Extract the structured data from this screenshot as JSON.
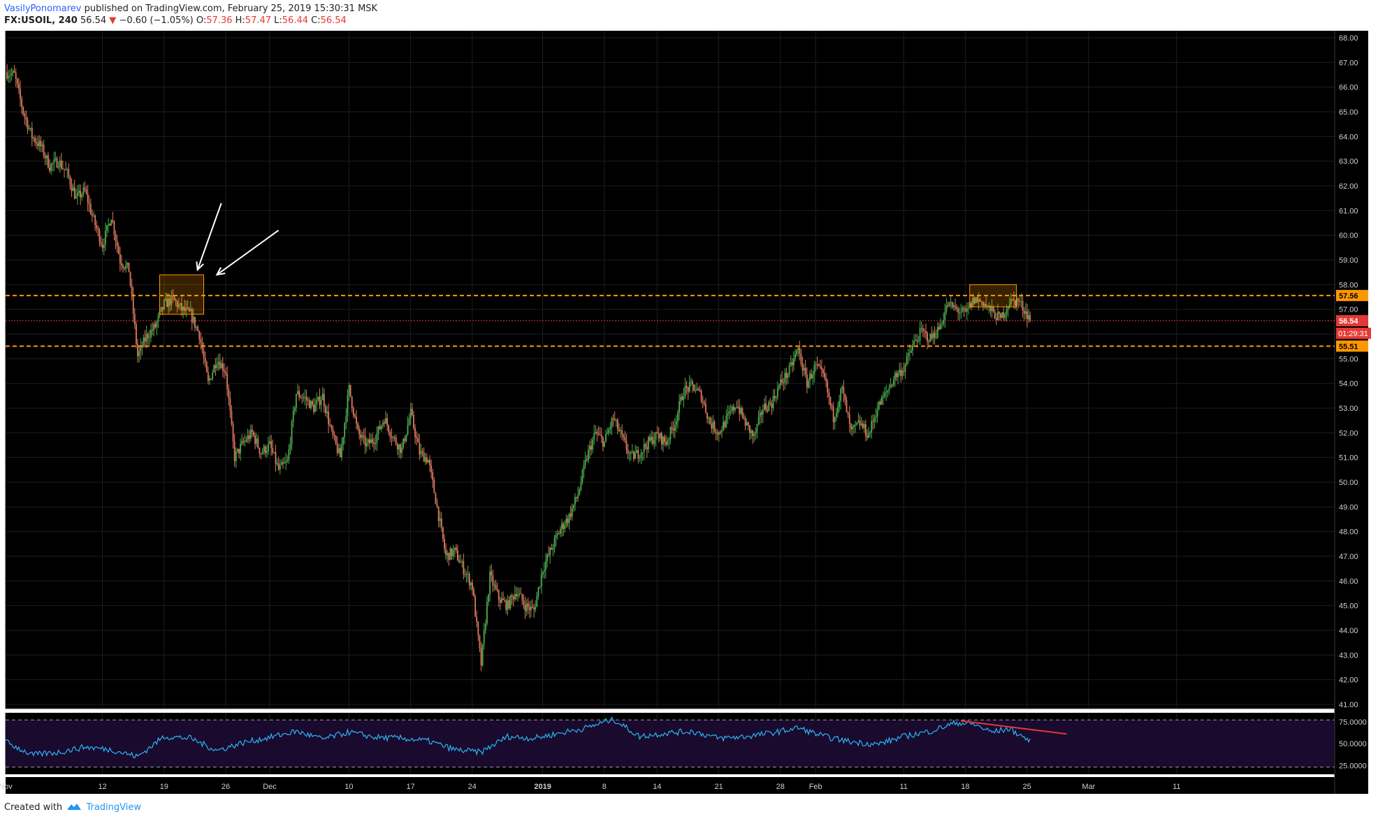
{
  "header": {
    "author": "VasilyPonomarev",
    "published_text": "published on TradingView.com, February 25, 2019 15:30:31 MSK",
    "symbol": "FX:USOIL, 240",
    "last": "56.54",
    "change": "−0.60 (−1.05%)",
    "o_label": "O:",
    "o_value": "57.36",
    "h_label": "H:",
    "h_value": "57.47",
    "l_label": "L:",
    "l_value": "56.44",
    "c_label": "C:",
    "c_value": "56.54"
  },
  "footer": {
    "created_with": "Created with",
    "brand": "TradingView"
  },
  "colors": {
    "background": "#000000",
    "grid": "#1e1e1e",
    "up": "#4caf50",
    "down": "#e07a5f",
    "orange": "#ff9800",
    "price_red": "#e53935",
    "rsi_line": "#29b6f6",
    "rsi_band": "#1a0a2e"
  },
  "chart_data": {
    "type": "candlestick",
    "symbol": "FX:USOIL",
    "interval": "240",
    "ylim": [
      41,
      68
    ],
    "y_ticks": [
      "68.00",
      "67.00",
      "66.00",
      "65.00",
      "64.00",
      "63.00",
      "62.00",
      "61.00",
      "60.00",
      "59.00",
      "58.00",
      "57.00",
      "56.00",
      "55.00",
      "54.00",
      "53.00",
      "52.00",
      "51.00",
      "50.00",
      "49.00",
      "48.00",
      "47.00",
      "46.00",
      "45.00",
      "44.00",
      "43.00",
      "42.00",
      "41.00"
    ],
    "x_ticks": [
      "Nov",
      "12",
      "19",
      "26",
      "Dec",
      "10",
      "17",
      "24",
      "2019",
      "8",
      "14",
      "21",
      "28",
      "Feb",
      "11",
      "18",
      "25",
      "Mar",
      "11"
    ],
    "x_tick_days": [
      0,
      11,
      18,
      25,
      30,
      39,
      46,
      53,
      61,
      68,
      74,
      81,
      88,
      92,
      102,
      109,
      116,
      123,
      133
    ],
    "last_day": 116.5,
    "price_path": [
      [
        0,
        66.6
      ],
      [
        1,
        66.5
      ],
      [
        2,
        65.0
      ],
      [
        3,
        64.0
      ],
      [
        4,
        63.6
      ],
      [
        5,
        62.8
      ],
      [
        6,
        63.0
      ],
      [
        7,
        62.5
      ],
      [
        8,
        61.5
      ],
      [
        9,
        61.8
      ],
      [
        10,
        60.6
      ],
      [
        11,
        59.6
      ],
      [
        12,
        60.8
      ],
      [
        13,
        59.0
      ],
      [
        14,
        58.6
      ],
      [
        15,
        55.1
      ],
      [
        16,
        55.9
      ],
      [
        17,
        56.3
      ],
      [
        18,
        57.2
      ],
      [
        19,
        57.4
      ],
      [
        20,
        57.0
      ],
      [
        21,
        56.8
      ],
      [
        22,
        56.0
      ],
      [
        23,
        54.0
      ],
      [
        24,
        55.0
      ],
      [
        25,
        54.5
      ],
      [
        26,
        51.0
      ],
      [
        27,
        51.6
      ],
      [
        28,
        52.0
      ],
      [
        29,
        51.2
      ],
      [
        30,
        51.5
      ],
      [
        31,
        50.5
      ],
      [
        32,
        50.8
      ],
      [
        33,
        53.6
      ],
      [
        34,
        53.4
      ],
      [
        35,
        53.0
      ],
      [
        36,
        53.5
      ],
      [
        37,
        52.0
      ],
      [
        38,
        51.0
      ],
      [
        39,
        53.8
      ],
      [
        40,
        52.0
      ],
      [
        41,
        51.5
      ],
      [
        42,
        51.8
      ],
      [
        43,
        52.6
      ],
      [
        44,
        51.8
      ],
      [
        45,
        51.3
      ],
      [
        46,
        52.8
      ],
      [
        47,
        51.2
      ],
      [
        48,
        50.9
      ],
      [
        49,
        49.0
      ],
      [
        50,
        47.0
      ],
      [
        51,
        47.2
      ],
      [
        52,
        46.5
      ],
      [
        53,
        45.8
      ],
      [
        54,
        42.6
      ],
      [
        55,
        46.2
      ],
      [
        56,
        45.3
      ],
      [
        57,
        45.0
      ],
      [
        58,
        45.6
      ],
      [
        59,
        45.0
      ],
      [
        60,
        44.8
      ],
      [
        61,
        46.5
      ],
      [
        62,
        47.3
      ],
      [
        63,
        48.1
      ],
      [
        64,
        48.6
      ],
      [
        65,
        49.5
      ],
      [
        66,
        51.0
      ],
      [
        67,
        52.0
      ],
      [
        68,
        51.6
      ],
      [
        69,
        52.6
      ],
      [
        70,
        51.8
      ],
      [
        71,
        51.0
      ],
      [
        72,
        51.2
      ],
      [
        73,
        51.6
      ],
      [
        74,
        51.9
      ],
      [
        75,
        51.6
      ],
      [
        76,
        52.4
      ],
      [
        77,
        53.7
      ],
      [
        78,
        53.9
      ],
      [
        79,
        53.5
      ],
      [
        80,
        52.4
      ],
      [
        81,
        52.0
      ],
      [
        82,
        52.6
      ],
      [
        83,
        53.2
      ],
      [
        84,
        52.4
      ],
      [
        85,
        51.8
      ],
      [
        86,
        53.0
      ],
      [
        87,
        53.2
      ],
      [
        88,
        54.0
      ],
      [
        89,
        54.5
      ],
      [
        90,
        55.4
      ],
      [
        91,
        54.0
      ],
      [
        92,
        54.7
      ],
      [
        93,
        54.2
      ],
      [
        94,
        52.6
      ],
      [
        95,
        53.8
      ],
      [
        96,
        52.0
      ],
      [
        97,
        52.4
      ],
      [
        98,
        51.9
      ],
      [
        99,
        53.0
      ],
      [
        100,
        53.6
      ],
      [
        101,
        54.3
      ],
      [
        102,
        54.6
      ],
      [
        103,
        55.5
      ],
      [
        104,
        56.1
      ],
      [
        105,
        55.8
      ],
      [
        106,
        56.2
      ],
      [
        107,
        57.2
      ],
      [
        108,
        57.0
      ],
      [
        109,
        56.8
      ],
      [
        110,
        57.4
      ],
      [
        111,
        57.3
      ],
      [
        112,
        56.9
      ],
      [
        113,
        56.6
      ],
      [
        114,
        57.3
      ],
      [
        115,
        57.36
      ],
      [
        116.5,
        56.54
      ]
    ],
    "price_labels": [
      {
        "value": 57.56,
        "text": "57.56",
        "color": "#ff9800"
      },
      {
        "value": 56.54,
        "text": "56.54",
        "color": "#e53935"
      },
      {
        "value": 55.51,
        "text": "55.51",
        "color": "#ff9800"
      }
    ],
    "countdown": "01:29:31",
    "horizontal_lines": [
      {
        "value": 57.56,
        "style": "dashed",
        "color": "#ff9800"
      },
      {
        "value": 56.54,
        "style": "dotted",
        "color": "#e53935"
      },
      {
        "value": 55.51,
        "style": "dashed",
        "color": "#ff9800"
      }
    ],
    "rectangles": [
      {
        "day_from": 17.5,
        "day_to": 22.5,
        "price_from": 56.8,
        "price_to": 58.4
      },
      {
        "day_from": 109.5,
        "day_to": 114.8,
        "price_from": 57.1,
        "price_to": 58.0
      }
    ],
    "arrows": [
      {
        "from_day": 24.5,
        "from_price": 61.3,
        "to_day": 21.8,
        "to_price": 58.6
      },
      {
        "from_day": 31.0,
        "from_price": 60.2,
        "to_day": 24.0,
        "to_price": 58.4
      }
    ],
    "rsi": {
      "ylim": [
        18,
        82
      ],
      "ticks": [
        "75.0000",
        "50.0000",
        "25.0000"
      ],
      "upper_band": 77,
      "lower_band": 23,
      "path": [
        [
          0,
          52
        ],
        [
          3,
          37
        ],
        [
          6,
          40
        ],
        [
          9,
          46
        ],
        [
          12,
          43
        ],
        [
          15,
          35
        ],
        [
          18,
          58
        ],
        [
          21,
          56
        ],
        [
          24,
          42
        ],
        [
          27,
          51
        ],
        [
          30,
          57
        ],
        [
          33,
          64
        ],
        [
          36,
          55
        ],
        [
          39,
          63
        ],
        [
          42,
          57
        ],
        [
          45,
          56
        ],
        [
          48,
          53
        ],
        [
          51,
          43
        ],
        [
          54,
          40
        ],
        [
          57,
          58
        ],
        [
          60,
          56
        ],
        [
          63,
          62
        ],
        [
          66,
          68
        ],
        [
          69,
          78
        ],
        [
          72,
          58
        ],
        [
          75,
          62
        ],
        [
          78,
          64
        ],
        [
          81,
          56
        ],
        [
          84,
          58
        ],
        [
          87,
          62
        ],
        [
          90,
          68
        ],
        [
          93,
          58
        ],
        [
          96,
          52
        ],
        [
          99,
          49
        ],
        [
          102,
          58
        ],
        [
          105,
          64
        ],
        [
          108,
          74
        ],
        [
          110,
          72
        ],
        [
          112,
          63
        ],
        [
          114,
          67
        ],
        [
          116.5,
          52
        ]
      ],
      "divergence_line": {
        "from_day": 108.5,
        "from_value": 76,
        "to_day": 120.5,
        "to_value": 61,
        "color": "#e53935"
      }
    }
  }
}
